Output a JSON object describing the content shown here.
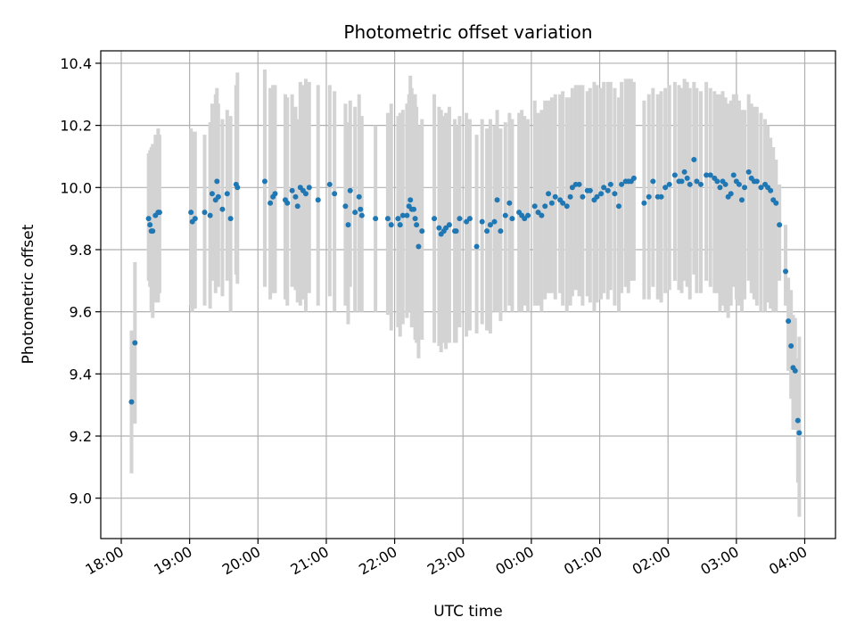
{
  "chart_data": {
    "type": "scatter",
    "title": "Photometric offset variation",
    "xlabel": "UTC time",
    "ylabel": "Photometric offset",
    "grid": true,
    "colors": {
      "points": "#1f77b4",
      "errorbars": "#d3d3d3",
      "grid": "#b0b0b0"
    },
    "xlim": [
      -0.3,
      10.45
    ],
    "ylim": [
      8.87,
      10.44
    ],
    "xtick_hours": [
      0,
      1,
      2,
      3,
      4,
      5,
      6,
      7,
      8,
      9,
      10
    ],
    "xtick_labels": [
      "18:00",
      "19:00",
      "20:00",
      "21:00",
      "22:00",
      "23:00",
      "00:00",
      "01:00",
      "02:00",
      "03:00",
      "04:00"
    ],
    "yticks": [
      9.0,
      9.2,
      9.4,
      9.6,
      9.8,
      10.0,
      10.2,
      10.4
    ],
    "ytick_labels": [
      "9.0",
      "9.2",
      "9.4",
      "9.6",
      "9.8",
      "10.0",
      "10.2",
      "10.4"
    ],
    "series": [
      {
        "name": "offset",
        "columns": [
          "hours_since_18h",
          "offset",
          "lower",
          "upper"
        ],
        "points": [
          [
            0.15,
            9.31,
            9.08,
            9.54
          ],
          [
            0.2,
            9.5,
            9.24,
            9.76
          ],
          [
            0.4,
            9.9,
            9.7,
            10.11
          ],
          [
            0.42,
            9.88,
            9.68,
            10.12
          ],
          [
            0.44,
            9.86,
            9.6,
            10.13
          ],
          [
            0.46,
            9.86,
            9.58,
            10.14
          ],
          [
            0.5,
            9.91,
            9.63,
            10.17
          ],
          [
            0.54,
            9.92,
            9.63,
            10.19
          ],
          [
            0.56,
            9.92,
            9.66,
            10.17
          ],
          [
            1.02,
            9.92,
            9.62,
            10.19
          ],
          [
            1.04,
            9.89,
            9.6,
            10.18
          ],
          [
            1.08,
            9.9,
            9.61,
            10.18
          ],
          [
            1.22,
            9.92,
            9.62,
            10.17
          ],
          [
            1.3,
            9.91,
            9.61,
            10.21
          ],
          [
            1.33,
            9.98,
            9.7,
            10.27
          ],
          [
            1.38,
            9.96,
            9.66,
            10.3
          ],
          [
            1.4,
            10.02,
            9.72,
            10.32
          ],
          [
            1.42,
            9.97,
            9.68,
            10.27
          ],
          [
            1.48,
            9.93,
            9.65,
            10.22
          ],
          [
            1.55,
            9.98,
            9.7,
            10.25
          ],
          [
            1.6,
            9.9,
            9.6,
            10.23
          ],
          [
            1.68,
            10.01,
            9.72,
            10.33
          ],
          [
            1.7,
            10.0,
            9.69,
            10.37
          ],
          [
            2.1,
            10.02,
            9.68,
            10.38
          ],
          [
            2.18,
            9.95,
            9.64,
            10.32
          ],
          [
            2.22,
            9.97,
            9.66,
            10.33
          ],
          [
            2.25,
            9.98,
            9.66,
            10.33
          ],
          [
            2.4,
            9.96,
            9.64,
            10.3
          ],
          [
            2.43,
            9.95,
            9.62,
            10.29
          ],
          [
            2.5,
            9.99,
            9.68,
            10.3
          ],
          [
            2.55,
            9.97,
            9.67,
            10.26
          ],
          [
            2.58,
            9.94,
            9.63,
            10.22
          ],
          [
            2.62,
            10.0,
            9.62,
            10.34
          ],
          [
            2.66,
            9.99,
            9.64,
            10.33
          ],
          [
            2.7,
            9.98,
            9.6,
            10.35
          ],
          [
            2.75,
            10.0,
            9.66,
            10.34
          ],
          [
            2.88,
            9.96,
            9.62,
            10.33
          ],
          [
            3.05,
            10.01,
            9.65,
            10.33
          ],
          [
            3.12,
            9.98,
            9.6,
            10.31
          ],
          [
            3.28,
            9.94,
            9.62,
            10.27
          ],
          [
            3.32,
            9.88,
            9.56,
            10.21
          ],
          [
            3.35,
            9.99,
            9.68,
            10.28
          ],
          [
            3.42,
            9.92,
            9.6,
            10.26
          ],
          [
            3.48,
            9.97,
            9.6,
            10.3
          ],
          [
            3.5,
            9.93,
            9.62,
            10.22
          ],
          [
            3.52,
            9.91,
            9.6,
            10.23
          ],
          [
            3.72,
            9.9,
            9.6,
            10.2
          ],
          [
            3.9,
            9.9,
            9.59,
            10.24
          ],
          [
            3.95,
            9.88,
            9.54,
            10.27
          ],
          [
            4.05,
            9.9,
            9.55,
            10.23
          ],
          [
            4.08,
            9.88,
            9.52,
            10.24
          ],
          [
            4.12,
            9.91,
            9.56,
            10.25
          ],
          [
            4.18,
            9.91,
            9.58,
            10.27
          ],
          [
            4.21,
            9.94,
            9.62,
            10.3
          ],
          [
            4.23,
            9.96,
            9.6,
            10.36
          ],
          [
            4.25,
            9.93,
            9.55,
            10.32
          ],
          [
            4.28,
            9.93,
            9.57,
            10.3
          ],
          [
            4.3,
            9.9,
            9.51,
            10.3
          ],
          [
            4.32,
            9.88,
            9.5,
            10.26
          ],
          [
            4.35,
            9.81,
            9.45,
            10.2
          ],
          [
            4.4,
            9.86,
            9.51,
            10.22
          ],
          [
            4.58,
            9.9,
            9.5,
            10.3
          ],
          [
            4.65,
            9.87,
            9.49,
            10.26
          ],
          [
            4.68,
            9.85,
            9.47,
            10.25
          ],
          [
            4.72,
            9.86,
            9.5,
            10.23
          ],
          [
            4.75,
            9.87,
            9.48,
            10.24
          ],
          [
            4.8,
            9.88,
            9.5,
            10.26
          ],
          [
            4.88,
            9.86,
            9.5,
            10.22
          ],
          [
            4.9,
            9.86,
            9.5,
            10.2
          ],
          [
            4.95,
            9.9,
            9.55,
            10.23
          ],
          [
            5.05,
            9.89,
            9.52,
            10.24
          ],
          [
            5.1,
            9.9,
            9.54,
            10.22
          ],
          [
            5.2,
            9.81,
            9.53,
            10.17
          ],
          [
            5.28,
            9.89,
            9.56,
            10.22
          ],
          [
            5.35,
            9.86,
            9.54,
            10.19
          ],
          [
            5.4,
            9.88,
            9.53,
            10.22
          ],
          [
            5.46,
            9.89,
            9.6,
            10.2
          ],
          [
            5.5,
            9.96,
            9.6,
            10.25
          ],
          [
            5.55,
            9.86,
            9.57,
            10.19
          ],
          [
            5.62,
            9.91,
            9.6,
            10.21
          ],
          [
            5.68,
            9.95,
            9.62,
            10.24
          ],
          [
            5.72,
            9.9,
            9.6,
            10.22
          ],
          [
            5.82,
            9.92,
            9.6,
            10.24
          ],
          [
            5.86,
            9.91,
            9.6,
            10.25
          ],
          [
            5.9,
            9.9,
            9.62,
            10.23
          ],
          [
            5.95,
            9.91,
            9.6,
            10.22
          ],
          [
            6.05,
            9.94,
            9.62,
            10.28
          ],
          [
            6.1,
            9.92,
            9.62,
            10.24
          ],
          [
            6.15,
            9.91,
            9.6,
            10.25
          ],
          [
            6.2,
            9.94,
            9.64,
            10.28
          ],
          [
            6.25,
            9.98,
            9.66,
            10.28
          ],
          [
            6.3,
            9.95,
            9.66,
            10.29
          ],
          [
            6.35,
            9.97,
            9.64,
            10.3
          ],
          [
            6.42,
            9.96,
            9.66,
            10.3
          ],
          [
            6.46,
            9.95,
            9.62,
            10.31
          ],
          [
            6.52,
            9.94,
            9.6,
            10.29
          ],
          [
            6.57,
            9.97,
            9.62,
            10.29
          ],
          [
            6.6,
            10.0,
            9.65,
            10.32
          ],
          [
            6.65,
            10.01,
            9.67,
            10.33
          ],
          [
            6.7,
            10.01,
            9.65,
            10.33
          ],
          [
            6.75,
            9.97,
            9.62,
            10.33
          ],
          [
            6.82,
            9.99,
            9.65,
            10.31
          ],
          [
            6.86,
            9.99,
            9.63,
            10.32
          ],
          [
            6.92,
            9.96,
            9.6,
            10.34
          ],
          [
            6.96,
            9.97,
            9.63,
            10.33
          ],
          [
            7.02,
            9.98,
            9.64,
            10.32
          ],
          [
            7.06,
            10.0,
            9.66,
            10.34
          ],
          [
            7.12,
            9.99,
            9.64,
            10.34
          ],
          [
            7.16,
            10.01,
            9.67,
            10.34
          ],
          [
            7.22,
            9.98,
            9.62,
            10.32
          ],
          [
            7.28,
            9.94,
            9.6,
            10.29
          ],
          [
            7.32,
            10.01,
            9.66,
            10.34
          ],
          [
            7.38,
            10.02,
            9.68,
            10.35
          ],
          [
            7.42,
            10.02,
            9.66,
            10.35
          ],
          [
            7.46,
            10.02,
            9.7,
            10.35
          ],
          [
            7.5,
            10.03,
            9.7,
            10.34
          ],
          [
            7.65,
            9.95,
            9.64,
            10.28
          ],
          [
            7.72,
            9.97,
            9.64,
            10.3
          ],
          [
            7.78,
            10.02,
            9.68,
            10.32
          ],
          [
            7.85,
            9.97,
            9.64,
            10.3
          ],
          [
            7.9,
            9.97,
            9.63,
            10.31
          ],
          [
            7.96,
            10.0,
            9.66,
            10.32
          ],
          [
            8.02,
            10.01,
            9.67,
            10.33
          ],
          [
            8.1,
            10.04,
            9.7,
            10.34
          ],
          [
            8.16,
            10.02,
            9.67,
            10.33
          ],
          [
            8.2,
            10.02,
            9.66,
            10.32
          ],
          [
            8.24,
            10.05,
            9.7,
            10.35
          ],
          [
            8.28,
            10.03,
            9.68,
            10.34
          ],
          [
            8.32,
            10.01,
            9.64,
            10.32
          ],
          [
            8.38,
            10.09,
            9.72,
            10.34
          ],
          [
            8.42,
            10.02,
            9.66,
            10.32
          ],
          [
            8.48,
            10.01,
            9.66,
            10.31
          ],
          [
            8.56,
            10.04,
            9.7,
            10.34
          ],
          [
            8.62,
            10.04,
            9.68,
            10.32
          ],
          [
            8.68,
            10.03,
            9.66,
            10.31
          ],
          [
            8.72,
            10.02,
            9.66,
            10.3
          ],
          [
            8.76,
            10.0,
            9.6,
            10.3
          ],
          [
            8.8,
            10.02,
            9.62,
            10.31
          ],
          [
            8.84,
            10.01,
            9.6,
            10.29
          ],
          [
            8.88,
            9.97,
            9.58,
            10.27
          ],
          [
            8.92,
            9.98,
            9.62,
            10.28
          ],
          [
            8.96,
            10.04,
            9.68,
            10.3
          ],
          [
            9.0,
            10.02,
            9.64,
            10.3
          ],
          [
            9.04,
            10.01,
            9.62,
            10.28
          ],
          [
            9.08,
            9.96,
            9.6,
            10.25
          ],
          [
            9.12,
            10.0,
            9.64,
            10.25
          ],
          [
            9.18,
            10.05,
            9.7,
            10.3
          ],
          [
            9.22,
            10.03,
            9.66,
            10.27
          ],
          [
            9.26,
            10.02,
            9.64,
            10.26
          ],
          [
            9.3,
            10.02,
            9.62,
            10.26
          ],
          [
            9.36,
            10.0,
            9.6,
            10.24
          ],
          [
            9.42,
            10.01,
            9.6,
            10.22
          ],
          [
            9.46,
            10.0,
            9.63,
            10.2
          ],
          [
            9.5,
            9.99,
            9.61,
            10.16
          ],
          [
            9.54,
            9.96,
            9.6,
            10.13
          ],
          [
            9.58,
            9.95,
            9.6,
            10.09
          ],
          [
            9.63,
            9.88,
            9.7,
            10.01
          ],
          [
            9.72,
            9.73,
            9.62,
            9.88
          ],
          [
            9.76,
            9.57,
            9.41,
            9.71
          ],
          [
            9.8,
            9.49,
            9.32,
            9.67
          ],
          [
            9.83,
            9.42,
            9.22,
            9.59
          ],
          [
            9.86,
            9.41,
            9.22,
            9.58
          ],
          [
            9.9,
            9.25,
            9.05,
            9.45
          ],
          [
            9.92,
            9.21,
            8.94,
            9.52
          ]
        ]
      }
    ]
  }
}
